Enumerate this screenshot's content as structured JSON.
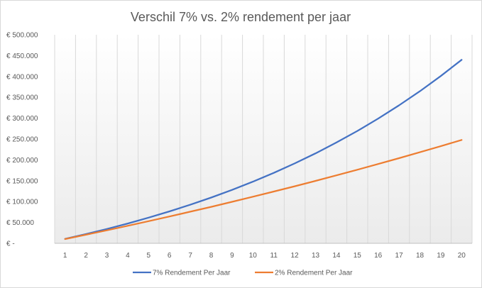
{
  "chart_data": {
    "type": "line",
    "title": "Verschil 7% vs. 2% rendement per jaar",
    "xlabel": "",
    "ylabel": "",
    "categories": [
      "1",
      "2",
      "3",
      "4",
      "5",
      "6",
      "7",
      "8",
      "9",
      "10",
      "11",
      "12",
      "13",
      "14",
      "15",
      "16",
      "17",
      "18",
      "19",
      "20"
    ],
    "y_ticks": [
      "€ -",
      "€ 50.000",
      "€ 100.000",
      "€ 150.000",
      "€ 200.000",
      "€ 250.000",
      "€ 300.000",
      "€ 350.000",
      "€ 400.000",
      "€ 450.000",
      "€ 500.000"
    ],
    "ylim": [
      0,
      500000
    ],
    "y_step": 50000,
    "series": [
      {
        "name": "7% Rendement Per Jaar",
        "color": "#4472c4",
        "values": [
          10700,
          22150,
          34400,
          47500,
          61500,
          76500,
          92550,
          109700,
          128000,
          147800,
          168900,
          191500,
          215700,
          241600,
          269300,
          298900,
          330700,
          364600,
          401000,
          439900
        ]
      },
      {
        "name": "2% Rendement Per Jaar",
        "color": "#ed7d31",
        "values": [
          10200,
          20600,
          31200,
          42000,
          53100,
          64300,
          75800,
          87500,
          99500,
          111700,
          124100,
          136800,
          149700,
          162900,
          176400,
          190100,
          204100,
          218400,
          232900,
          247800
        ]
      }
    ],
    "grid": "vertical",
    "legend": "bottom",
    "background": "gradient white to light gray"
  }
}
